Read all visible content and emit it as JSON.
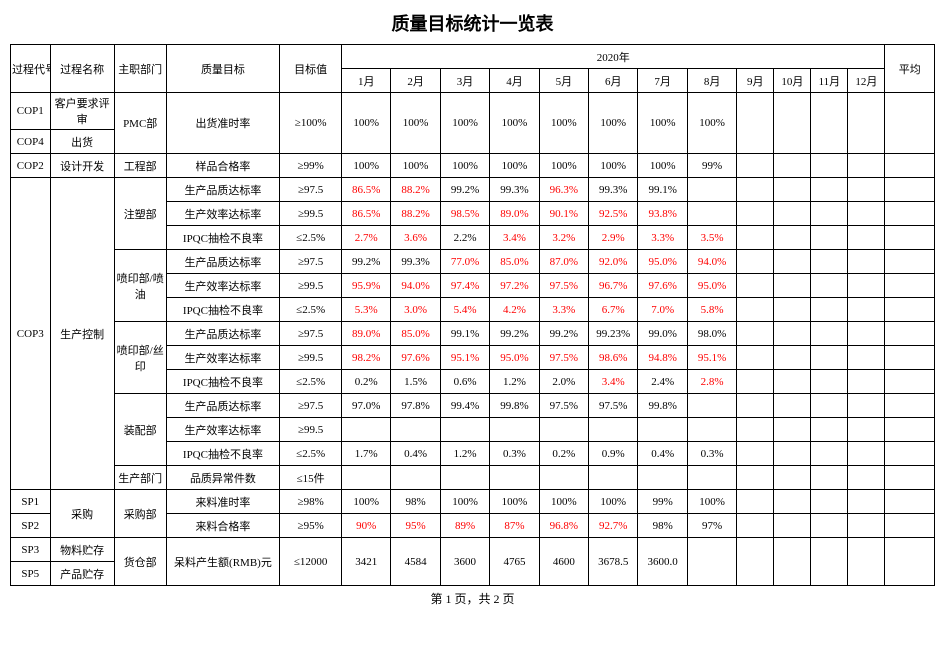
{
  "title": "质量目标统计一览表",
  "font_sizes": {
    "title": 18,
    "cell": 11,
    "footer": 12
  },
  "colors": {
    "black": "#000000",
    "red": "#ff0000",
    "bg": "#ffffff"
  },
  "header": {
    "proc_code": "过程代号",
    "proc_name": "过程名称",
    "dept": "主职部门",
    "metric": "质量目标",
    "target": "目标值",
    "year": "2020年",
    "avg": "平均",
    "months": [
      "1月",
      "2月",
      "3月",
      "4月",
      "5月",
      "6月",
      "7月",
      "8月",
      "9月",
      "10月",
      "11月",
      "12月"
    ]
  },
  "rows": [
    {
      "code": "COP1",
      "code_rs": 1,
      "proc": "客户要求评审",
      "proc_rs": 1,
      "dept": "PMC部",
      "dept_rs": 2,
      "metric": "出货准时率",
      "metric_rs": 2,
      "target": "≥100%",
      "target_rs": 2,
      "vals": [
        {
          "t": "100%"
        },
        {
          "t": "100%"
        },
        {
          "t": "100%"
        },
        {
          "t": "100%"
        },
        {
          "t": "100%"
        },
        {
          "t": "100%"
        },
        {
          "t": "100%"
        },
        {
          "t": "100%"
        },
        {
          "t": ""
        },
        {
          "t": ""
        },
        {
          "t": ""
        },
        {
          "t": ""
        }
      ],
      "vals_rs": 2,
      "avg": "",
      "avg_rs": 2
    },
    {
      "code": "COP4",
      "code_rs": 1,
      "proc": "出货",
      "proc_rs": 1
    },
    {
      "code": "COP2",
      "code_rs": 1,
      "proc": "设计开发",
      "proc_rs": 1,
      "dept": "工程部",
      "dept_rs": 1,
      "metric": "样品合格率",
      "metric_rs": 1,
      "target": "≥99%",
      "target_rs": 1,
      "vals": [
        {
          "t": "100%"
        },
        {
          "t": "100%"
        },
        {
          "t": "100%"
        },
        {
          "t": "100%"
        },
        {
          "t": "100%"
        },
        {
          "t": "100%"
        },
        {
          "t": "100%"
        },
        {
          "t": "99%"
        },
        {
          "t": ""
        },
        {
          "t": ""
        },
        {
          "t": ""
        },
        {
          "t": ""
        }
      ],
      "vals_rs": 1,
      "avg": "",
      "avg_rs": 1
    },
    {
      "code": "COP3",
      "code_rs": 13,
      "proc": "生产控制",
      "proc_rs": 13,
      "dept": "注塑部",
      "dept_rs": 3,
      "metric": "生产品质达标率",
      "metric_rs": 1,
      "target": "≥97.5",
      "target_rs": 1,
      "vals": [
        {
          "t": "86.5%",
          "r": 1
        },
        {
          "t": "88.2%",
          "r": 1
        },
        {
          "t": "99.2%"
        },
        {
          "t": "99.3%"
        },
        {
          "t": "96.3%",
          "r": 1
        },
        {
          "t": "99.3%"
        },
        {
          "t": "99.1%"
        },
        {
          "t": ""
        },
        {
          "t": ""
        },
        {
          "t": ""
        },
        {
          "t": ""
        },
        {
          "t": ""
        }
      ],
      "vals_rs": 1,
      "avg": "",
      "avg_rs": 1
    },
    {
      "metric": "生产效率达标率",
      "metric_rs": 1,
      "target": "≥99.5",
      "target_rs": 1,
      "vals": [
        {
          "t": "86.5%",
          "r": 1
        },
        {
          "t": "88.2%",
          "r": 1
        },
        {
          "t": "98.5%",
          "r": 1
        },
        {
          "t": "89.0%",
          "r": 1
        },
        {
          "t": "90.1%",
          "r": 1
        },
        {
          "t": "92.5%",
          "r": 1
        },
        {
          "t": "93.8%",
          "r": 1
        },
        {
          "t": ""
        },
        {
          "t": ""
        },
        {
          "t": ""
        },
        {
          "t": ""
        },
        {
          "t": ""
        }
      ],
      "vals_rs": 1,
      "avg": "",
      "avg_rs": 1
    },
    {
      "metric": "IPQC抽检不良率",
      "metric_rs": 1,
      "target": "≤2.5%",
      "target_rs": 1,
      "vals": [
        {
          "t": "2.7%",
          "r": 1
        },
        {
          "t": "3.6%",
          "r": 1
        },
        {
          "t": "2.2%"
        },
        {
          "t": "3.4%",
          "r": 1
        },
        {
          "t": "3.2%",
          "r": 1
        },
        {
          "t": "2.9%",
          "r": 1
        },
        {
          "t": "3.3%",
          "r": 1
        },
        {
          "t": "3.5%",
          "r": 1
        },
        {
          "t": ""
        },
        {
          "t": ""
        },
        {
          "t": ""
        },
        {
          "t": ""
        }
      ],
      "vals_rs": 1,
      "avg": "",
      "avg_rs": 1
    },
    {
      "dept": "喷印部/喷油",
      "dept_rs": 3,
      "metric": "生产品质达标率",
      "metric_rs": 1,
      "target": "≥97.5",
      "target_rs": 1,
      "vals": [
        {
          "t": "99.2%"
        },
        {
          "t": "99.3%"
        },
        {
          "t": "77.0%",
          "r": 1
        },
        {
          "t": "85.0%",
          "r": 1
        },
        {
          "t": "87.0%",
          "r": 1
        },
        {
          "t": "92.0%",
          "r": 1
        },
        {
          "t": "95.0%",
          "r": 1
        },
        {
          "t": "94.0%",
          "r": 1
        },
        {
          "t": ""
        },
        {
          "t": ""
        },
        {
          "t": ""
        },
        {
          "t": ""
        }
      ],
      "vals_rs": 1,
      "avg": "",
      "avg_rs": 1
    },
    {
      "metric": "生产效率达标率",
      "metric_rs": 1,
      "target": "≥99.5",
      "target_rs": 1,
      "vals": [
        {
          "t": "95.9%",
          "r": 1
        },
        {
          "t": "94.0%",
          "r": 1
        },
        {
          "t": "97.4%",
          "r": 1
        },
        {
          "t": "97.2%",
          "r": 1
        },
        {
          "t": "97.5%",
          "r": 1
        },
        {
          "t": "96.7%",
          "r": 1
        },
        {
          "t": "97.6%",
          "r": 1
        },
        {
          "t": "95.0%",
          "r": 1
        },
        {
          "t": ""
        },
        {
          "t": ""
        },
        {
          "t": ""
        },
        {
          "t": ""
        }
      ],
      "vals_rs": 1,
      "avg": "",
      "avg_rs": 1
    },
    {
      "metric": "IPQC抽检不良率",
      "metric_rs": 1,
      "target": "≤2.5%",
      "target_rs": 1,
      "vals": [
        {
          "t": "5.3%",
          "r": 1
        },
        {
          "t": "3.0%",
          "r": 1
        },
        {
          "t": "5.4%",
          "r": 1
        },
        {
          "t": "4.2%",
          "r": 1
        },
        {
          "t": "3.3%",
          "r": 1
        },
        {
          "t": "6.7%",
          "r": 1
        },
        {
          "t": "7.0%",
          "r": 1
        },
        {
          "t": "5.8%",
          "r": 1
        },
        {
          "t": ""
        },
        {
          "t": ""
        },
        {
          "t": ""
        },
        {
          "t": ""
        }
      ],
      "vals_rs": 1,
      "avg": "",
      "avg_rs": 1
    },
    {
      "dept": "喷印部/丝印",
      "dept_rs": 3,
      "metric": "生产品质达标率",
      "metric_rs": 1,
      "target": "≥97.5",
      "target_rs": 1,
      "vals": [
        {
          "t": "89.0%",
          "r": 1
        },
        {
          "t": "85.0%",
          "r": 1
        },
        {
          "t": "99.1%"
        },
        {
          "t": "99.2%"
        },
        {
          "t": "99.2%"
        },
        {
          "t": "99.23%"
        },
        {
          "t": "99.0%"
        },
        {
          "t": "98.0%"
        },
        {
          "t": ""
        },
        {
          "t": ""
        },
        {
          "t": ""
        },
        {
          "t": ""
        }
      ],
      "vals_rs": 1,
      "avg": "",
      "avg_rs": 1
    },
    {
      "metric": "生产效率达标率",
      "metric_rs": 1,
      "target": "≥99.5",
      "target_rs": 1,
      "vals": [
        {
          "t": "98.2%",
          "r": 1
        },
        {
          "t": "97.6%",
          "r": 1
        },
        {
          "t": "95.1%",
          "r": 1
        },
        {
          "t": "95.0%",
          "r": 1
        },
        {
          "t": "97.5%",
          "r": 1
        },
        {
          "t": "98.6%",
          "r": 1
        },
        {
          "t": "94.8%",
          "r": 1
        },
        {
          "t": "95.1%",
          "r": 1
        },
        {
          "t": ""
        },
        {
          "t": ""
        },
        {
          "t": ""
        },
        {
          "t": ""
        }
      ],
      "vals_rs": 1,
      "avg": "",
      "avg_rs": 1
    },
    {
      "metric": "IPQC抽检不良率",
      "metric_rs": 1,
      "target": "≤2.5%",
      "target_rs": 1,
      "vals": [
        {
          "t": "0.2%"
        },
        {
          "t": "1.5%"
        },
        {
          "t": "0.6%"
        },
        {
          "t": "1.2%"
        },
        {
          "t": "2.0%"
        },
        {
          "t": "3.4%",
          "r": 1
        },
        {
          "t": "2.4%"
        },
        {
          "t": "2.8%",
          "r": 1
        },
        {
          "t": ""
        },
        {
          "t": ""
        },
        {
          "t": ""
        },
        {
          "t": ""
        }
      ],
      "vals_rs": 1,
      "avg": "",
      "avg_rs": 1
    },
    {
      "dept": "装配部",
      "dept_rs": 3,
      "metric": "生产品质达标率",
      "metric_rs": 1,
      "target": "≥97.5",
      "target_rs": 1,
      "vals": [
        {
          "t": "97.0%"
        },
        {
          "t": "97.8%"
        },
        {
          "t": "99.4%"
        },
        {
          "t": "99.8%"
        },
        {
          "t": "97.5%"
        },
        {
          "t": "97.5%"
        },
        {
          "t": "99.8%"
        },
        {
          "t": ""
        },
        {
          "t": ""
        },
        {
          "t": ""
        },
        {
          "t": ""
        },
        {
          "t": ""
        }
      ],
      "vals_rs": 1,
      "avg": "",
      "avg_rs": 1
    },
    {
      "metric": "生产效率达标率",
      "metric_rs": 1,
      "target": "≥99.5",
      "target_rs": 1,
      "vals": [
        {
          "t": ""
        },
        {
          "t": ""
        },
        {
          "t": ""
        },
        {
          "t": ""
        },
        {
          "t": ""
        },
        {
          "t": ""
        },
        {
          "t": ""
        },
        {
          "t": ""
        },
        {
          "t": ""
        },
        {
          "t": ""
        },
        {
          "t": ""
        },
        {
          "t": ""
        }
      ],
      "vals_rs": 1,
      "avg": "",
      "avg_rs": 1
    },
    {
      "metric": "IPQC抽检不良率",
      "metric_rs": 1,
      "target": "≤2.5%",
      "target_rs": 1,
      "vals": [
        {
          "t": "1.7%"
        },
        {
          "t": "0.4%"
        },
        {
          "t": "1.2%"
        },
        {
          "t": "0.3%"
        },
        {
          "t": "0.2%"
        },
        {
          "t": "0.9%"
        },
        {
          "t": "0.4%"
        },
        {
          "t": "0.3%"
        },
        {
          "t": ""
        },
        {
          "t": ""
        },
        {
          "t": ""
        },
        {
          "t": ""
        }
      ],
      "vals_rs": 1,
      "avg": "",
      "avg_rs": 1
    },
    {
      "dept": "生产部门",
      "dept_rs": 1,
      "metric": "品质异常件数",
      "metric_rs": 1,
      "target": "≤15件",
      "target_rs": 1,
      "vals": [
        {
          "t": ""
        },
        {
          "t": ""
        },
        {
          "t": ""
        },
        {
          "t": ""
        },
        {
          "t": ""
        },
        {
          "t": ""
        },
        {
          "t": ""
        },
        {
          "t": ""
        },
        {
          "t": ""
        },
        {
          "t": ""
        },
        {
          "t": ""
        },
        {
          "t": ""
        }
      ],
      "vals_rs": 1,
      "avg": "",
      "avg_rs": 1
    },
    {
      "code": "SP1",
      "code_rs": 1,
      "proc": "采购",
      "proc_rs": 2,
      "dept": "采购部",
      "dept_rs": 2,
      "metric": "来料准时率",
      "metric_rs": 1,
      "target": "≥98%",
      "target_rs": 1,
      "vals": [
        {
          "t": "100%"
        },
        {
          "t": "98%"
        },
        {
          "t": "100%"
        },
        {
          "t": "100%"
        },
        {
          "t": "100%"
        },
        {
          "t": "100%"
        },
        {
          "t": "99%"
        },
        {
          "t": "100%"
        },
        {
          "t": ""
        },
        {
          "t": ""
        },
        {
          "t": ""
        },
        {
          "t": ""
        }
      ],
      "vals_rs": 1,
      "avg": "",
      "avg_rs": 1
    },
    {
      "code": "SP2",
      "code_rs": 1,
      "metric": "来料合格率",
      "metric_rs": 1,
      "target": "≥95%",
      "target_rs": 1,
      "vals": [
        {
          "t": "90%",
          "r": 1
        },
        {
          "t": "95%",
          "r": 1
        },
        {
          "t": "89%",
          "r": 1
        },
        {
          "t": "87%",
          "r": 1
        },
        {
          "t": "96.8%",
          "r": 1
        },
        {
          "t": "92.7%",
          "r": 1
        },
        {
          "t": "98%"
        },
        {
          "t": "97%"
        },
        {
          "t": ""
        },
        {
          "t": ""
        },
        {
          "t": ""
        },
        {
          "t": ""
        }
      ],
      "vals_rs": 1,
      "avg": "",
      "avg_rs": 1
    },
    {
      "code": "SP3",
      "code_rs": 1,
      "proc": "物料贮存",
      "proc_rs": 1,
      "dept": "货仓部",
      "dept_rs": 2,
      "metric": "呆料产生额(RMB)元",
      "metric_rs": 2,
      "target": "≤12000",
      "target_rs": 2,
      "vals": [
        {
          "t": "3421"
        },
        {
          "t": "4584"
        },
        {
          "t": "3600"
        },
        {
          "t": "4765"
        },
        {
          "t": "4600"
        },
        {
          "t": "3678.5"
        },
        {
          "t": "3600.0"
        },
        {
          "t": ""
        },
        {
          "t": ""
        },
        {
          "t": ""
        },
        {
          "t": ""
        },
        {
          "t": ""
        }
      ],
      "vals_rs": 2,
      "avg": "",
      "avg_rs": 2
    },
    {
      "code": "SP5",
      "code_rs": 1,
      "proc": "产品贮存",
      "proc_rs": 1
    }
  ],
  "footer": "第 1 页，共 2 页"
}
